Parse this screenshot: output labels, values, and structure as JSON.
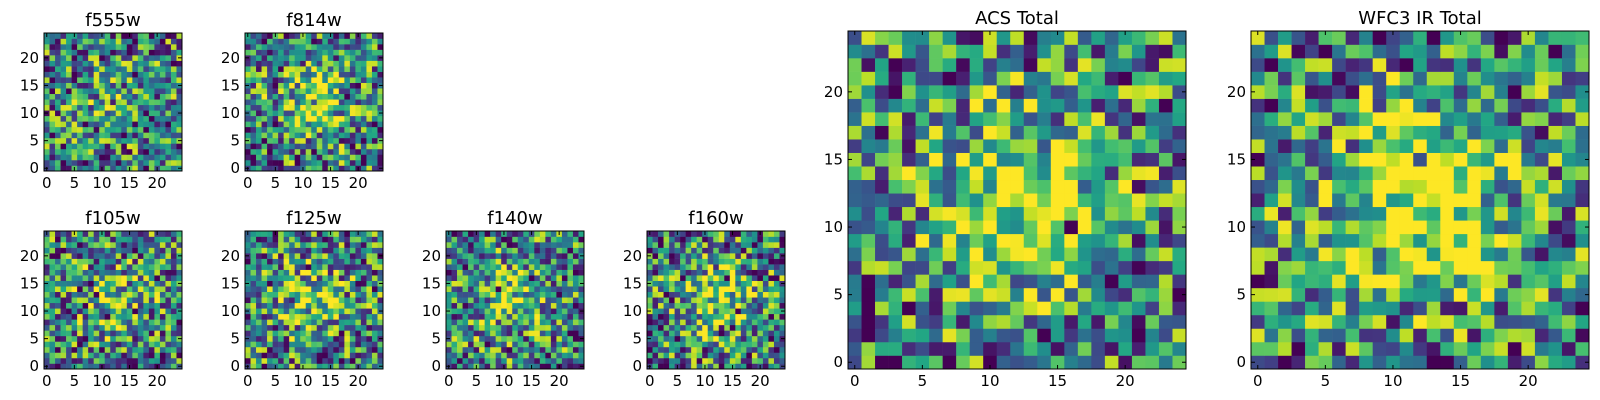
{
  "figure": {
    "colormap": "viridis",
    "background": "#ffffff"
  },
  "chart_data": [
    {
      "type": "heatmap",
      "title": "f555w",
      "grid_size": 25,
      "seed": 11,
      "blob_strength": 0.08,
      "xticks": [
        "0",
        "5",
        "10",
        "15",
        "20"
      ],
      "yticks": [
        "0",
        "5",
        "10",
        "15",
        "20"
      ],
      "xlim": [
        -0.5,
        24.5
      ],
      "ylim": [
        -0.5,
        24.5
      ]
    },
    {
      "type": "heatmap",
      "title": "f814w",
      "grid_size": 25,
      "seed": 23,
      "blob_strength": 0.3,
      "xticks": [
        "0",
        "5",
        "10",
        "15",
        "20"
      ],
      "yticks": [
        "0",
        "5",
        "10",
        "15",
        "20"
      ],
      "xlim": [
        -0.5,
        24.5
      ],
      "ylim": [
        -0.5,
        24.5
      ]
    },
    {
      "type": "heatmap",
      "title": "f105w",
      "grid_size": 25,
      "seed": 37,
      "blob_strength": 0.2,
      "xticks": [
        "0",
        "5",
        "10",
        "15",
        "20"
      ],
      "yticks": [
        "0",
        "5",
        "10",
        "15",
        "20"
      ],
      "xlim": [
        -0.5,
        24.5
      ],
      "ylim": [
        -0.5,
        24.5
      ]
    },
    {
      "type": "heatmap",
      "title": "f125w",
      "grid_size": 25,
      "seed": 41,
      "blob_strength": 0.22,
      "xticks": [
        "0",
        "5",
        "10",
        "15",
        "20"
      ],
      "yticks": [
        "0",
        "5",
        "10",
        "15",
        "20"
      ],
      "xlim": [
        -0.5,
        24.5
      ],
      "ylim": [
        -0.5,
        24.5
      ]
    },
    {
      "type": "heatmap",
      "title": "f140w",
      "grid_size": 25,
      "seed": 53,
      "blob_strength": 0.22,
      "xticks": [
        "0",
        "5",
        "10",
        "15",
        "20"
      ],
      "yticks": [
        "0",
        "5",
        "10",
        "15",
        "20"
      ],
      "xlim": [
        -0.5,
        24.5
      ],
      "ylim": [
        -0.5,
        24.5
      ]
    },
    {
      "type": "heatmap",
      "title": "f160w",
      "grid_size": 25,
      "seed": 67,
      "blob_strength": 0.3,
      "xticks": [
        "0",
        "5",
        "10",
        "15",
        "20"
      ],
      "yticks": [
        "0",
        "5",
        "10",
        "15",
        "20"
      ],
      "xlim": [
        -0.5,
        24.5
      ],
      "ylim": [
        -0.5,
        24.5
      ]
    },
    {
      "type": "heatmap",
      "title": "ACS Total",
      "grid_size": 25,
      "seed": 79,
      "blob_strength": 0.35,
      "xticks": [
        "0",
        "5",
        "10",
        "15",
        "20"
      ],
      "yticks": [
        "0",
        "5",
        "10",
        "15",
        "20"
      ],
      "xlim": [
        -0.5,
        24.5
      ],
      "ylim": [
        -0.5,
        24.5
      ]
    },
    {
      "type": "heatmap",
      "title": "WFC3 IR Total",
      "grid_size": 25,
      "seed": 97,
      "blob_strength": 0.45,
      "xticks": [
        "0",
        "5",
        "10",
        "15",
        "20"
      ],
      "yticks": [
        "0",
        "5",
        "10",
        "15",
        "20"
      ],
      "xlim": [
        -0.5,
        24.5
      ],
      "ylim": [
        -0.5,
        24.5
      ]
    }
  ]
}
